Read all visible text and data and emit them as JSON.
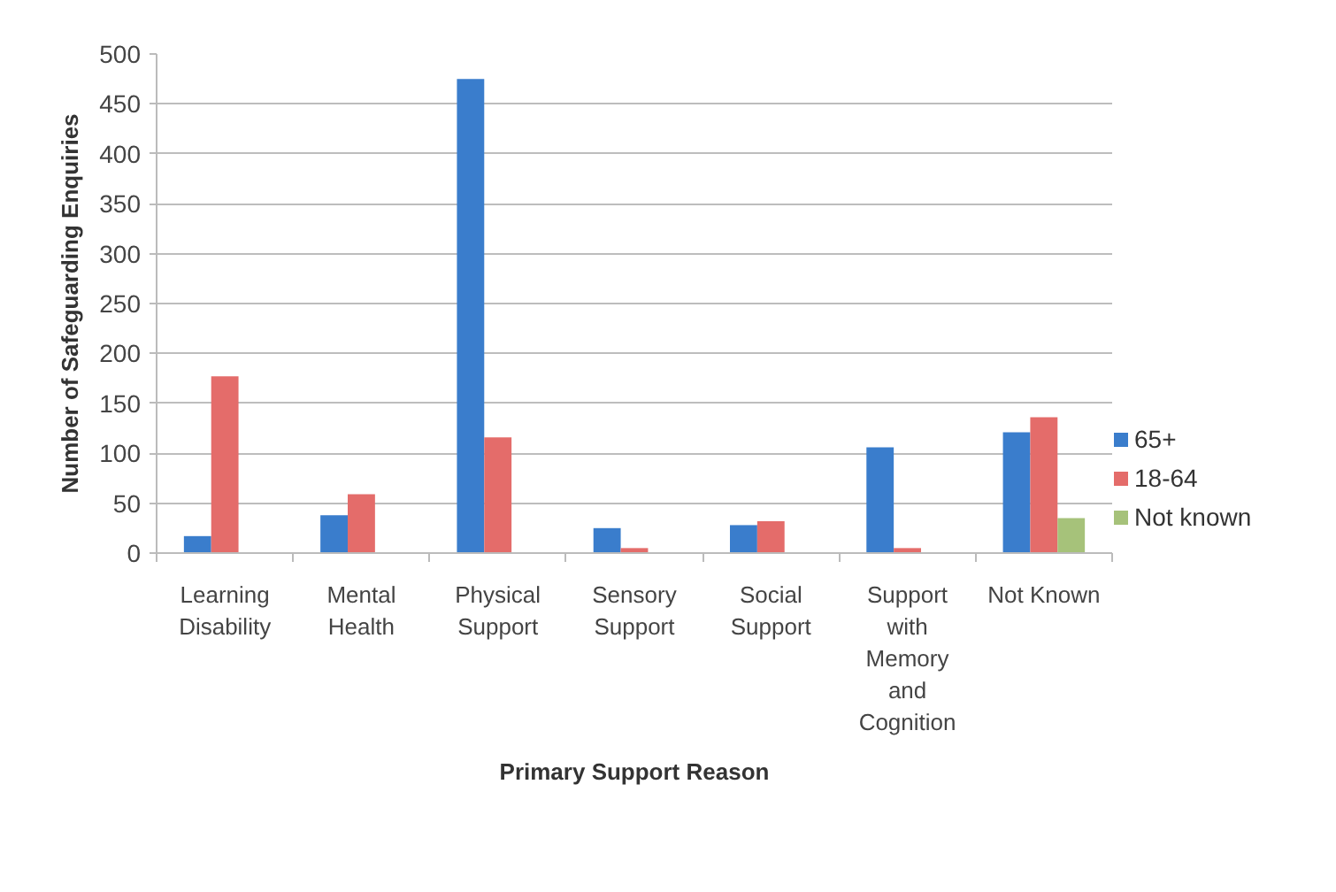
{
  "chart_data": {
    "type": "bar",
    "xlabel": "Primary Support Reason",
    "ylabel": "Number of Safeguarding Enquiries",
    "categories": [
      "Learning Disability",
      "Mental Health",
      "Physical Support",
      "Sensory Support",
      "Social Support",
      "Support with Memory and Cognition",
      "Not Known"
    ],
    "series": [
      {
        "name": "65+",
        "color": "#3a7dcc",
        "values": [
          17,
          38,
          475,
          25,
          28,
          106,
          121
        ]
      },
      {
        "name": "18-64",
        "color": "#e46c6a",
        "values": [
          177,
          59,
          116,
          5,
          32,
          5,
          136
        ]
      },
      {
        "name": "Not known",
        "color": "#a6c27a",
        "values": [
          null,
          null,
          null,
          null,
          null,
          null,
          35
        ]
      }
    ],
    "ylim": [
      0,
      500
    ],
    "yticks": [
      0,
      50,
      100,
      150,
      200,
      250,
      300,
      350,
      400,
      450,
      500
    ],
    "grid": "y",
    "legend": "right"
  }
}
